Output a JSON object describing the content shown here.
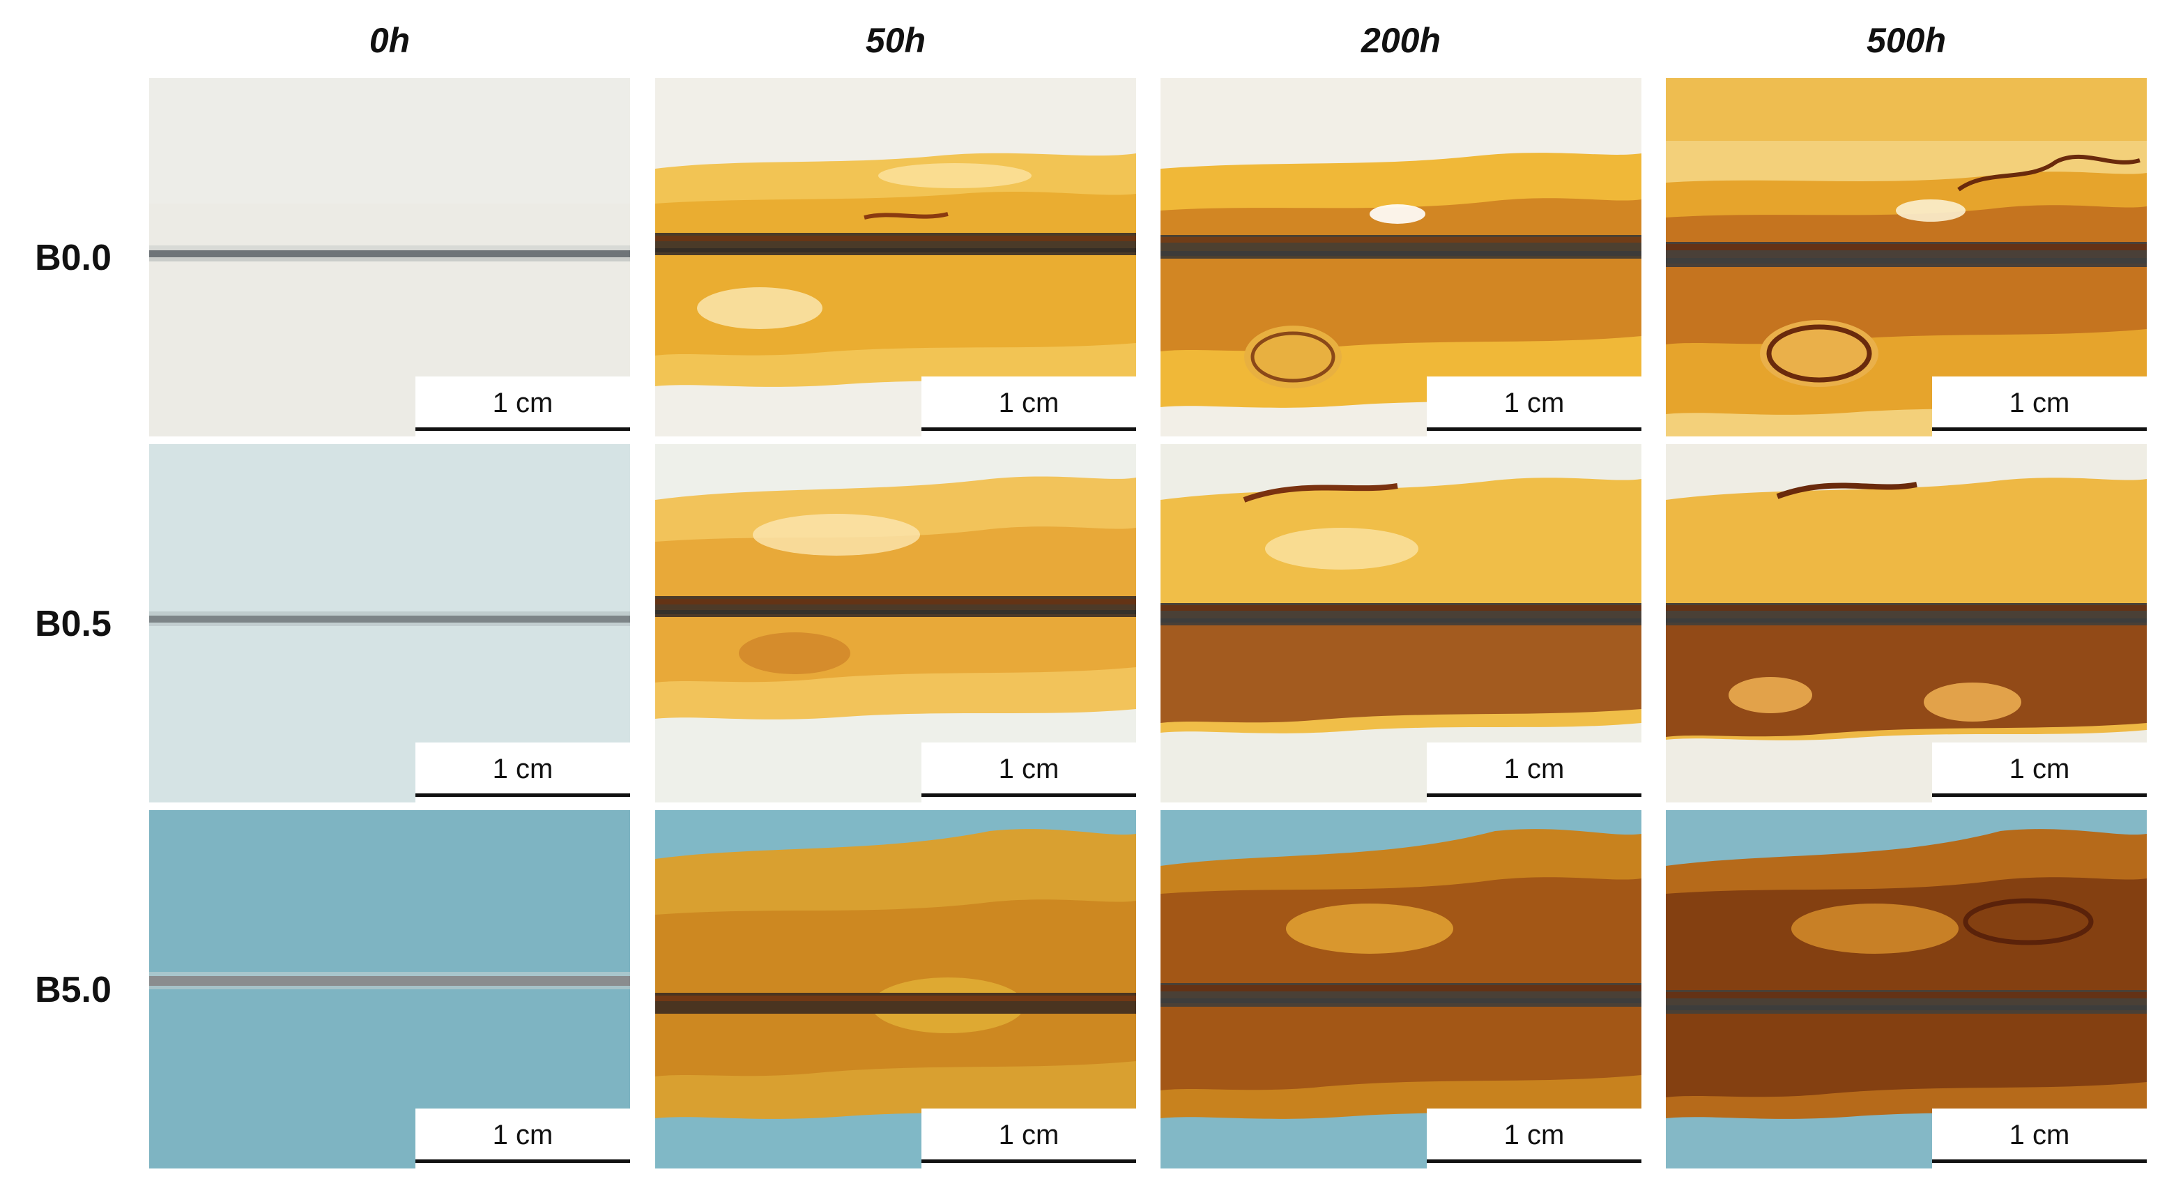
{
  "columns": [
    {
      "label": "0h"
    },
    {
      "label": "50h"
    },
    {
      "label": "200h"
    },
    {
      "label": "500h"
    }
  ],
  "rows": [
    {
      "label": "B0.0"
    },
    {
      "label": "B0.5"
    },
    {
      "label": "B5.0"
    }
  ],
  "scale_bar": {
    "label": "1 cm"
  },
  "colors": {
    "background_white": "#ece8df",
    "background_light_blue": "#d4e4e6",
    "background_blue": "#7fb6c4",
    "rust_yellow": "#e8b030",
    "rust_brown": "#8a3a10",
    "scribe_dark": "#3a3a3a"
  }
}
